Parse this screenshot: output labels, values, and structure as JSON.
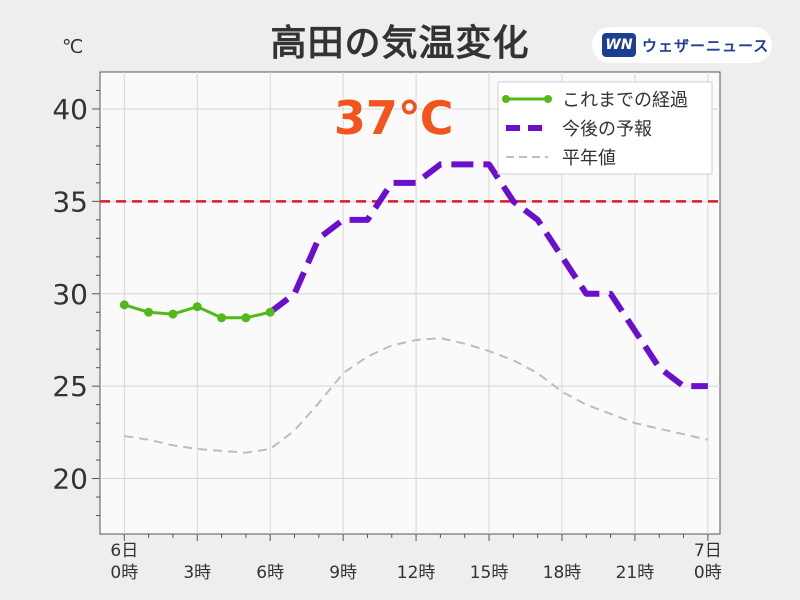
{
  "header": {
    "title": "高田の気温変化",
    "unit": "℃",
    "brand_logo": "WN",
    "brand_name": "ウェザーニュース"
  },
  "annotation": "37℃",
  "colors": {
    "observed": "#52b91a",
    "forecast": "#6a0fcd",
    "normal": "#bdbdbd",
    "threshold": "#e11b1b",
    "annotation_fill": "#f2541b"
  },
  "chart_data": {
    "type": "line",
    "title": "高田の気温変化",
    "ylabel": "℃",
    "ylim": [
      17,
      42
    ],
    "xlim": [
      -1,
      24.5
    ],
    "yticks": [
      20,
      25,
      30,
      35,
      40
    ],
    "xticks": [
      {
        "x": 0,
        "label": [
          "6日",
          "0時"
        ]
      },
      {
        "x": 3,
        "label": [
          "",
          "3時"
        ]
      },
      {
        "x": 6,
        "label": [
          "",
          "6時"
        ]
      },
      {
        "x": 9,
        "label": [
          "",
          "9時"
        ]
      },
      {
        "x": 12,
        "label": [
          "",
          "12時"
        ]
      },
      {
        "x": 15,
        "label": [
          "",
          "15時"
        ]
      },
      {
        "x": 18,
        "label": [
          "",
          "18時"
        ]
      },
      {
        "x": 21,
        "label": [
          "",
          "21時"
        ]
      },
      {
        "x": 24,
        "label": [
          "7日",
          "0時"
        ]
      }
    ],
    "threshold": 35,
    "grid": true,
    "legend_position": "top-right",
    "series": [
      {
        "name": "これまでの経過",
        "style": "solid-markers",
        "x": [
          0,
          1,
          2,
          3,
          4,
          5,
          6
        ],
        "y": [
          29.4,
          29.0,
          28.9,
          29.3,
          28.7,
          28.7,
          29.0
        ]
      },
      {
        "name": "今後の予報",
        "style": "dashed-thick",
        "x": [
          6,
          7,
          8,
          9,
          10,
          11,
          12,
          13,
          14,
          15,
          16,
          17,
          18,
          19,
          20,
          21,
          22,
          23,
          24
        ],
        "y": [
          29.0,
          30.0,
          33.0,
          34.0,
          34.0,
          36.0,
          36.0,
          37.0,
          37.0,
          37.0,
          35.0,
          34.0,
          32.0,
          30.0,
          30.0,
          28.0,
          26.0,
          25.0,
          25.0
        ]
      },
      {
        "name": "平年値",
        "style": "dashed-thin",
        "x": [
          0,
          1,
          2,
          3,
          4,
          5,
          6,
          7,
          8,
          9,
          10,
          11,
          12,
          13,
          14,
          15,
          16,
          17,
          18,
          19,
          20,
          21,
          22,
          23,
          24
        ],
        "y": [
          22.3,
          22.1,
          21.8,
          21.6,
          21.5,
          21.4,
          21.6,
          22.6,
          24.1,
          25.7,
          26.6,
          27.2,
          27.5,
          27.6,
          27.3,
          26.9,
          26.4,
          25.7,
          24.7,
          24.0,
          23.5,
          23.0,
          22.7,
          22.4,
          22.1
        ]
      }
    ]
  }
}
